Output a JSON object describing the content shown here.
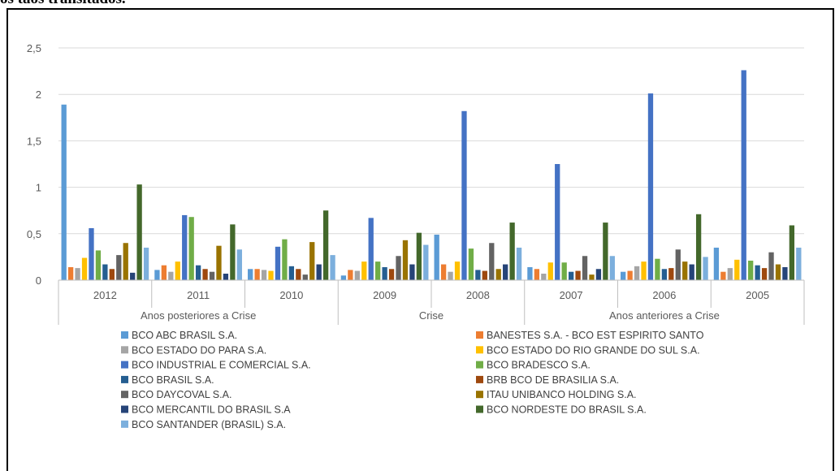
{
  "caption": "os tâos trânsitados.",
  "chart_data": {
    "type": "bar",
    "ylim": [
      0,
      2.5
    ],
    "y_ticks": [
      "0",
      "0,5",
      "1",
      "1,5",
      "2",
      "2,5"
    ],
    "y_tick_values": [
      0,
      0.5,
      1,
      1.5,
      2,
      2.5
    ],
    "grid": true,
    "legend_position": "bottom",
    "categories": [
      "2012",
      "2011",
      "2010",
      "2009",
      "2008",
      "2007",
      "2006",
      "2005"
    ],
    "groups": [
      {
        "label": "Anos posteriores a Crise",
        "span": [
          0,
          2
        ]
      },
      {
        "label": "Crise",
        "span": [
          3,
          4
        ]
      },
      {
        "label": "Anos anteriores a Crise",
        "span": [
          5,
          7
        ]
      }
    ],
    "series": [
      {
        "name": "BCO ABC BRASIL S.A.",
        "color": "#5B9BD5",
        "values": [
          1.89,
          0.11,
          0.12,
          0.05,
          0.49,
          0.14,
          0.09,
          0.35
        ]
      },
      {
        "name": "BANESTES S.A. - BCO EST ESPIRITO SANTO",
        "color": "#ED7D31",
        "values": [
          0.14,
          0.16,
          0.12,
          0.11,
          0.17,
          0.12,
          0.1,
          0.09
        ]
      },
      {
        "name": "BCO ESTADO DO PARA S.A.",
        "color": "#A5A5A5",
        "values": [
          0.13,
          0.09,
          0.11,
          0.1,
          0.09,
          0.07,
          0.15,
          0.13
        ]
      },
      {
        "name": "BCO ESTADO DO RIO GRANDE DO SUL S.A.",
        "color": "#FFC000",
        "values": [
          0.24,
          0.2,
          0.1,
          0.2,
          0.2,
          0.19,
          0.2,
          0.22
        ]
      },
      {
        "name": "BCO INDUSTRIAL E COMERCIAL S.A.",
        "color": "#4472C4",
        "values": [
          0.56,
          0.7,
          0.36,
          0.67,
          1.82,
          1.25,
          2.01,
          2.26
        ]
      },
      {
        "name": "BCO BRADESCO S.A.",
        "color": "#70AD47",
        "values": [
          0.32,
          0.68,
          0.44,
          0.2,
          0.34,
          0.19,
          0.23,
          0.21
        ]
      },
      {
        "name": "BCO BRASIL S.A.",
        "color": "#255E91",
        "values": [
          0.17,
          0.16,
          0.15,
          0.14,
          0.11,
          0.09,
          0.12,
          0.16
        ]
      },
      {
        "name": "BRB BCO DE BRASILIA S.A.",
        "color": "#9E480E",
        "values": [
          0.12,
          0.12,
          0.12,
          0.12,
          0.1,
          0.1,
          0.13,
          0.13
        ]
      },
      {
        "name": "BCO DAYCOVAL S.A.",
        "color": "#636363",
        "values": [
          0.27,
          0.09,
          0.06,
          0.26,
          0.4,
          0.26,
          0.33,
          0.3
        ]
      },
      {
        "name": "ITAU UNIBANCO HOLDING S.A.",
        "color": "#997300",
        "values": [
          0.4,
          0.37,
          0.41,
          0.43,
          0.12,
          0.06,
          0.2,
          0.17
        ]
      },
      {
        "name": "BCO MERCANTIL DO BRASIL S.A",
        "color": "#264478",
        "values": [
          0.08,
          0.07,
          0.17,
          0.17,
          0.17,
          0.12,
          0.17,
          0.14
        ]
      },
      {
        "name": "BCO NORDESTE DO BRASIL S.A.",
        "color": "#43682B",
        "values": [
          1.03,
          0.6,
          0.75,
          0.51,
          0.62,
          0.62,
          0.71,
          0.59
        ]
      },
      {
        "name": "BCO SANTANDER (BRASIL) S.A.",
        "color": "#7CAFDD",
        "values": [
          0.35,
          0.33,
          0.27,
          0.38,
          0.35,
          0.26,
          0.25,
          0.35
        ]
      }
    ]
  }
}
